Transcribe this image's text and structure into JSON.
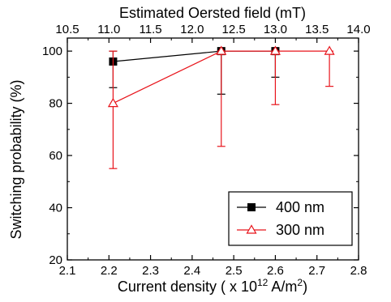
{
  "chart_data": {
    "type": "scatter",
    "title": "",
    "xlabel_bottom": {
      "prefix": "Current density ( x 10",
      "exp": "12",
      "mid": " A/m",
      "exp2": "2",
      "suffix": ")"
    },
    "xlabel_top": "Estimated Oersted field (mT)",
    "ylabel": "Switching probability (%)",
    "xlim": [
      2.1,
      2.8
    ],
    "x2lim": [
      10.5,
      14.0
    ],
    "ylim": [
      20,
      105
    ],
    "x_ticks": [
      "2.1",
      "2.2",
      "2.3",
      "2.4",
      "2.5",
      "2.6",
      "2.7",
      "2.8"
    ],
    "x2_ticks": [
      "10.5",
      "11.0",
      "11.5",
      "12.0",
      "12.5",
      "13.0",
      "13.5",
      "14.0"
    ],
    "y_ticks": [
      "20",
      "40",
      "60",
      "80",
      "100"
    ],
    "legend_position": "bottom-right",
    "series": [
      {
        "name": "400 nm",
        "color": "#000000",
        "marker": "filled-square",
        "x": [
          2.21,
          2.47,
          2.6
        ],
        "y": [
          96,
          100,
          100
        ],
        "err_low": [
          86,
          83.5,
          90
        ],
        "err_high": [
          100,
          100,
          100
        ]
      },
      {
        "name": "300 nm",
        "color": "#e8141b",
        "marker": "open-triangle",
        "x": [
          2.21,
          2.47,
          2.6,
          2.73
        ],
        "y": [
          80,
          100,
          100,
          100
        ],
        "err_low": [
          55,
          63.5,
          79.5,
          86.5
        ],
        "err_high": [
          100,
          100,
          100,
          100
        ]
      }
    ]
  }
}
